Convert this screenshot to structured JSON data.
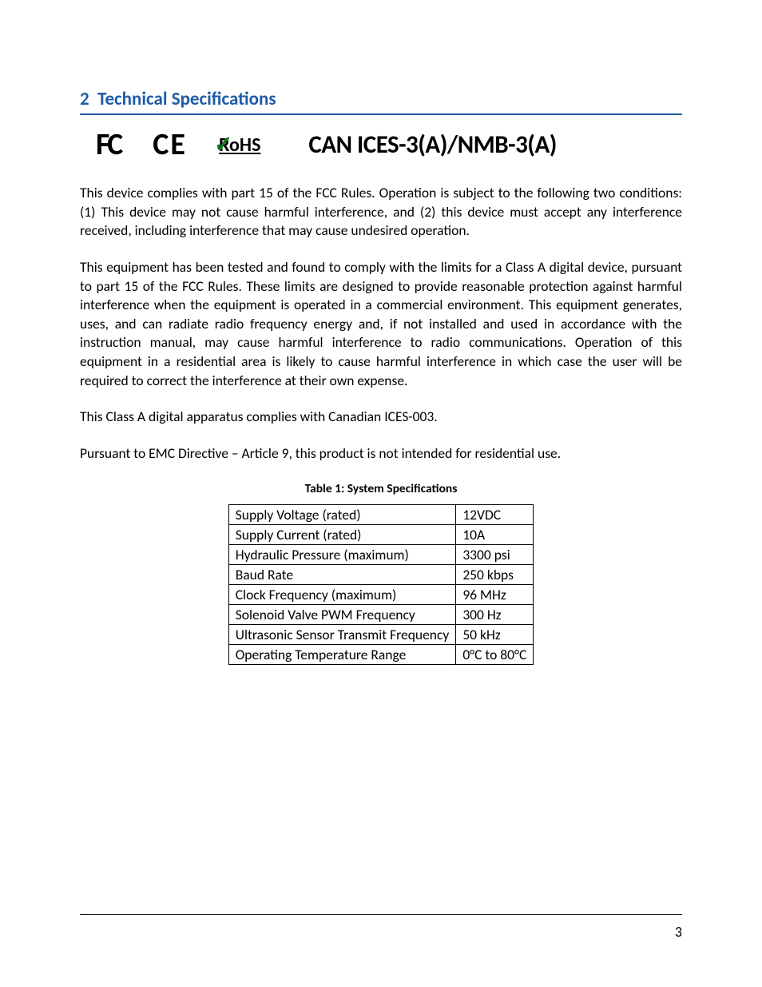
{
  "heading": {
    "number": "2",
    "title": "Technical Specifications"
  },
  "logos": {
    "fc": "FC",
    "ce": "CE",
    "rohs": "RoHS",
    "can_ices": "CAN ICES-3(A)/NMB-3(A)"
  },
  "paragraphs": {
    "p1": "This device complies with part 15 of the FCC Rules. Operation is subject to the following two conditions: (1) This device may not cause harmful interference, and (2) this device must accept any interference received, including interference that may cause undesired operation.",
    "p2": "This equipment has been tested and found to comply with the limits for a Class A digital device, pursuant to part 15 of the FCC Rules. These limits are designed to provide reasonable protection against harmful interference when the equipment is operated in a commercial environment. This equipment generates, uses, and can radiate radio frequency energy and, if not installed and used in accordance with the instruction manual, may cause harmful interference to radio communications. Operation of this equipment in a residential area is likely to cause harmful interference in which case the user will be required to correct the interference at their own expense.",
    "p3": "This Class A digital apparatus complies with Canadian ICES-003.",
    "p4": "Pursuant to EMC Directive – Article 9, this product is not intended for residential use."
  },
  "table": {
    "caption": "Table 1: System Specifications",
    "rows": [
      {
        "label": "Supply Voltage (rated)",
        "value": "12VDC"
      },
      {
        "label": "Supply Current (rated)",
        "value": "10A"
      },
      {
        "label": "Hydraulic Pressure (maximum)",
        "value": "3300 psi"
      },
      {
        "label": "Baud Rate",
        "value": "250 kbps"
      },
      {
        "label": "Clock Frequency (maximum)",
        "value": "96 MHz"
      },
      {
        "label": "Solenoid Valve PWM Frequency",
        "value": "300 Hz"
      },
      {
        "label": "Ultrasonic Sensor Transmit Frequency",
        "value": "50 kHz"
      },
      {
        "label": "Operating Temperature Range",
        "value": "0°C to 80°C"
      }
    ]
  },
  "footer": {
    "page_number": "3"
  },
  "colors": {
    "heading_color": "#1f5ca8",
    "text_color": "#000000",
    "border_color": "#000000",
    "background": "#ffffff",
    "rohs_check": "#0a7a1a"
  },
  "typography": {
    "heading_fontsize_pt": 17,
    "body_fontsize_pt": 13,
    "caption_fontsize_pt": 12,
    "can_ices_fontsize_pt": 23
  }
}
